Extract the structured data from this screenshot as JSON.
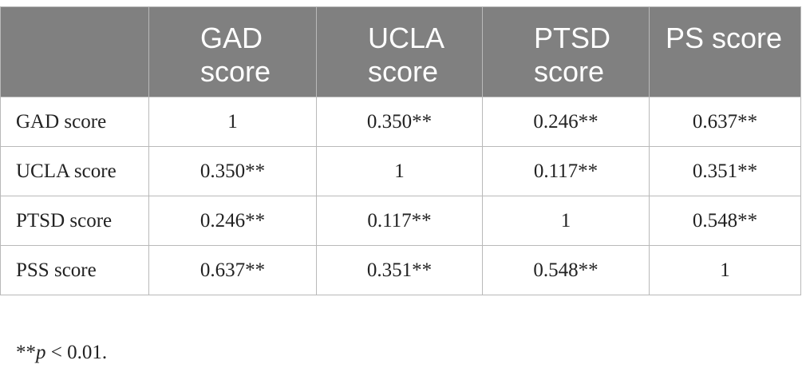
{
  "table": {
    "headers": [
      "",
      "GAD score",
      "UCLA score",
      "PTSD score",
      "PS score"
    ],
    "rows": [
      {
        "label": "GAD score",
        "values": [
          "1",
          "0.350**",
          "0.246**",
          "0.637**"
        ]
      },
      {
        "label": "UCLA score",
        "values": [
          "0.350**",
          "1",
          "0.117**",
          "0.351**"
        ]
      },
      {
        "label": "PTSD score",
        "values": [
          "0.246**",
          "0.117**",
          "1",
          "0.548**"
        ]
      },
      {
        "label": "PSS score",
        "values": [
          "0.637**",
          "0.351**",
          "0.548**",
          "1"
        ]
      }
    ]
  },
  "footnote": {
    "prefix": "**",
    "symbol": "p",
    "suffix": " < 0.01."
  }
}
